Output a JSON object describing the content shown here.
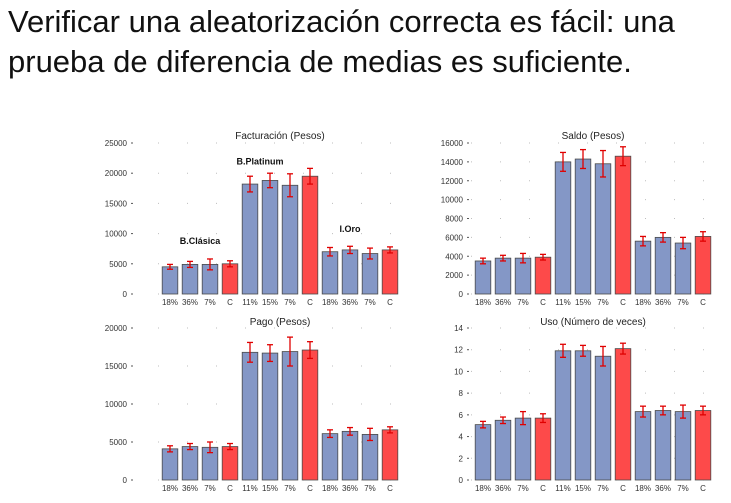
{
  "slide": {
    "title_line1": "Verificar una aleatorización correcta es fácil: una",
    "title_line2": "prueba de diferencia de medias es suficiente."
  },
  "colors": {
    "treatment": "#8497c6",
    "control": "#fd4a4a",
    "error_bar": "#e00000"
  },
  "categories": [
    "18%",
    "36%",
    "7%",
    "C",
    "11%",
    "15%",
    "7%",
    "C",
    "18%",
    "36%",
    "7%",
    "C"
  ],
  "control_flags": [
    false,
    false,
    false,
    true,
    false,
    false,
    false,
    true,
    false,
    false,
    false,
    true
  ],
  "chart_data": [
    {
      "type": "bar",
      "title": "Facturación (Pesos)",
      "ylim": [
        0,
        25000
      ],
      "yticks": [
        0,
        5000,
        10000,
        15000,
        20000,
        25000
      ],
      "values": [
        4500,
        4900,
        4900,
        5000,
        18200,
        18800,
        18000,
        19500,
        7000,
        7300,
        6700,
        7300
      ],
      "errors": [
        400,
        500,
        900,
        500,
        1300,
        1200,
        1900,
        1300,
        700,
        600,
        900,
        500
      ],
      "group_labels": [
        {
          "text": "B.Clásica",
          "index": 1.5,
          "y": 8300
        },
        {
          "text": "B.Platinum",
          "index": 4.5,
          "y": 21400
        },
        {
          "text": "I.Oro",
          "index": 9,
          "y": 10300
        }
      ]
    },
    {
      "type": "bar",
      "title": "Saldo (Pesos)",
      "ylim": [
        0,
        16000
      ],
      "yticks": [
        0,
        2000,
        4000,
        6000,
        8000,
        10000,
        12000,
        14000,
        16000
      ],
      "values": [
        3500,
        3800,
        3800,
        3900,
        14000,
        14300,
        13800,
        14600,
        5600,
        6000,
        5400,
        6100
      ],
      "errors": [
        300,
        300,
        500,
        300,
        1000,
        1000,
        1400,
        1000,
        500,
        500,
        600,
        500
      ],
      "group_labels": []
    },
    {
      "type": "bar",
      "title": "Pago (Pesos)",
      "ylim": [
        0,
        20000
      ],
      "yticks": [
        0,
        5000,
        10000,
        15000,
        20000
      ],
      "values": [
        4100,
        4400,
        4300,
        4400,
        16800,
        16700,
        16900,
        17100,
        6100,
        6400,
        6000,
        6600
      ],
      "errors": [
        400,
        400,
        700,
        400,
        1300,
        1100,
        1900,
        1100,
        500,
        500,
        800,
        400
      ],
      "group_labels": []
    },
    {
      "type": "bar",
      "title": "Uso (Número de veces)",
      "ylim": [
        0,
        14
      ],
      "yticks": [
        0,
        2,
        4,
        6,
        8,
        10,
        12,
        14
      ],
      "values": [
        5.1,
        5.5,
        5.7,
        5.7,
        11.9,
        11.9,
        11.4,
        12.1,
        6.3,
        6.4,
        6.3,
        6.4
      ],
      "errors": [
        0.3,
        0.3,
        0.6,
        0.4,
        0.6,
        0.5,
        0.9,
        0.5,
        0.5,
        0.4,
        0.6,
        0.4
      ],
      "group_labels": []
    }
  ]
}
